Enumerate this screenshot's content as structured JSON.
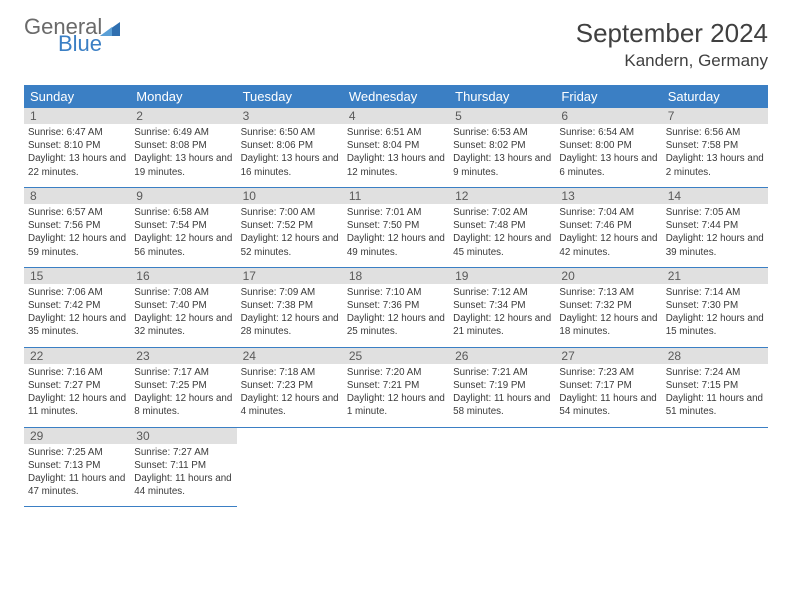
{
  "logo": {
    "general": "General",
    "blue": "Blue"
  },
  "title": "September 2024",
  "location": "Kandern, Germany",
  "colors": {
    "headerBg": "#3b7fc4",
    "headerText": "#ffffff",
    "dayHeaderBg": "#e0e0e0",
    "text": "#3a3a3a",
    "border": "#3b7fc4"
  },
  "weekdays": [
    "Sunday",
    "Monday",
    "Tuesday",
    "Wednesday",
    "Thursday",
    "Friday",
    "Saturday"
  ],
  "days": [
    {
      "n": 1,
      "sunrise": "6:47 AM",
      "sunset": "8:10 PM",
      "daylight": "13 hours and 22 minutes."
    },
    {
      "n": 2,
      "sunrise": "6:49 AM",
      "sunset": "8:08 PM",
      "daylight": "13 hours and 19 minutes."
    },
    {
      "n": 3,
      "sunrise": "6:50 AM",
      "sunset": "8:06 PM",
      "daylight": "13 hours and 16 minutes."
    },
    {
      "n": 4,
      "sunrise": "6:51 AM",
      "sunset": "8:04 PM",
      "daylight": "13 hours and 12 minutes."
    },
    {
      "n": 5,
      "sunrise": "6:53 AM",
      "sunset": "8:02 PM",
      "daylight": "13 hours and 9 minutes."
    },
    {
      "n": 6,
      "sunrise": "6:54 AM",
      "sunset": "8:00 PM",
      "daylight": "13 hours and 6 minutes."
    },
    {
      "n": 7,
      "sunrise": "6:56 AM",
      "sunset": "7:58 PM",
      "daylight": "13 hours and 2 minutes."
    },
    {
      "n": 8,
      "sunrise": "6:57 AM",
      "sunset": "7:56 PM",
      "daylight": "12 hours and 59 minutes."
    },
    {
      "n": 9,
      "sunrise": "6:58 AM",
      "sunset": "7:54 PM",
      "daylight": "12 hours and 56 minutes."
    },
    {
      "n": 10,
      "sunrise": "7:00 AM",
      "sunset": "7:52 PM",
      "daylight": "12 hours and 52 minutes."
    },
    {
      "n": 11,
      "sunrise": "7:01 AM",
      "sunset": "7:50 PM",
      "daylight": "12 hours and 49 minutes."
    },
    {
      "n": 12,
      "sunrise": "7:02 AM",
      "sunset": "7:48 PM",
      "daylight": "12 hours and 45 minutes."
    },
    {
      "n": 13,
      "sunrise": "7:04 AM",
      "sunset": "7:46 PM",
      "daylight": "12 hours and 42 minutes."
    },
    {
      "n": 14,
      "sunrise": "7:05 AM",
      "sunset": "7:44 PM",
      "daylight": "12 hours and 39 minutes."
    },
    {
      "n": 15,
      "sunrise": "7:06 AM",
      "sunset": "7:42 PM",
      "daylight": "12 hours and 35 minutes."
    },
    {
      "n": 16,
      "sunrise": "7:08 AM",
      "sunset": "7:40 PM",
      "daylight": "12 hours and 32 minutes."
    },
    {
      "n": 17,
      "sunrise": "7:09 AM",
      "sunset": "7:38 PM",
      "daylight": "12 hours and 28 minutes."
    },
    {
      "n": 18,
      "sunrise": "7:10 AM",
      "sunset": "7:36 PM",
      "daylight": "12 hours and 25 minutes."
    },
    {
      "n": 19,
      "sunrise": "7:12 AM",
      "sunset": "7:34 PM",
      "daylight": "12 hours and 21 minutes."
    },
    {
      "n": 20,
      "sunrise": "7:13 AM",
      "sunset": "7:32 PM",
      "daylight": "12 hours and 18 minutes."
    },
    {
      "n": 21,
      "sunrise": "7:14 AM",
      "sunset": "7:30 PM",
      "daylight": "12 hours and 15 minutes."
    },
    {
      "n": 22,
      "sunrise": "7:16 AM",
      "sunset": "7:27 PM",
      "daylight": "12 hours and 11 minutes."
    },
    {
      "n": 23,
      "sunrise": "7:17 AM",
      "sunset": "7:25 PM",
      "daylight": "12 hours and 8 minutes."
    },
    {
      "n": 24,
      "sunrise": "7:18 AM",
      "sunset": "7:23 PM",
      "daylight": "12 hours and 4 minutes."
    },
    {
      "n": 25,
      "sunrise": "7:20 AM",
      "sunset": "7:21 PM",
      "daylight": "12 hours and 1 minute."
    },
    {
      "n": 26,
      "sunrise": "7:21 AM",
      "sunset": "7:19 PM",
      "daylight": "11 hours and 58 minutes."
    },
    {
      "n": 27,
      "sunrise": "7:23 AM",
      "sunset": "7:17 PM",
      "daylight": "11 hours and 54 minutes."
    },
    {
      "n": 28,
      "sunrise": "7:24 AM",
      "sunset": "7:15 PM",
      "daylight": "11 hours and 51 minutes."
    },
    {
      "n": 29,
      "sunrise": "7:25 AM",
      "sunset": "7:13 PM",
      "daylight": "11 hours and 47 minutes."
    },
    {
      "n": 30,
      "sunrise": "7:27 AM",
      "sunset": "7:11 PM",
      "daylight": "11 hours and 44 minutes."
    }
  ],
  "startWeekday": 0,
  "labels": {
    "sunrise": "Sunrise:",
    "sunset": "Sunset:",
    "daylight": "Daylight:"
  }
}
